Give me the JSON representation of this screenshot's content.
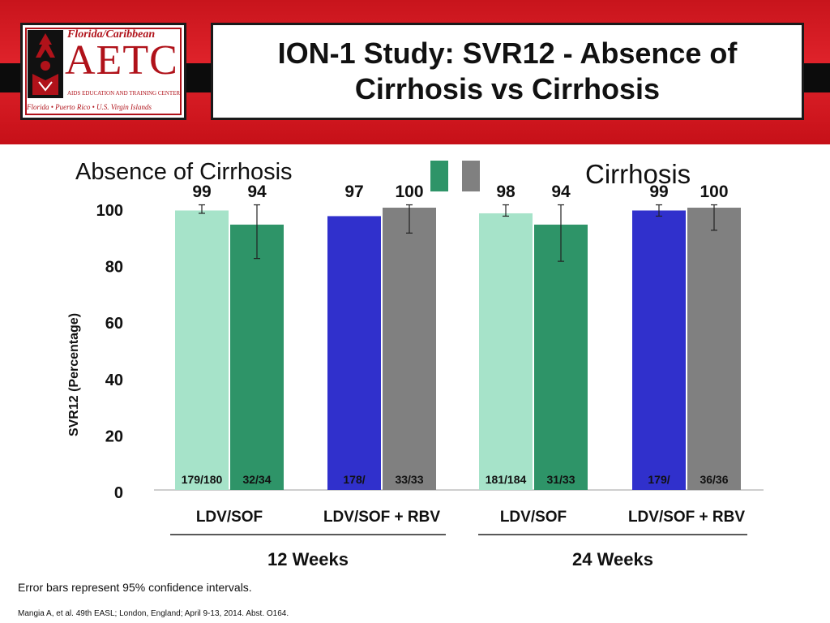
{
  "logo": {
    "top_text": "Florida/Caribbean",
    "main_text": "AETC",
    "sub_text": "AIDS EDUCATION AND TRAINING CENTER",
    "foot_text": "Florida • Puerto Rico • U.S. Virgin Islands"
  },
  "slide": {
    "title": "ION-1 Study: SVR12 - Absence of Cirrhosis vs Cirrhosis",
    "note": "Error bars represent 95% confidence intervals.",
    "citation": "Mangia A, et al. 49th EASL; London, England; April 9-13, 2014. Abst. O164."
  },
  "colors": {
    "banner_red": "#d11a22",
    "absence_ldv_sof": "#a6e3c9",
    "cirrhosis_ldv_sof": "#2e9468",
    "absence_ldv_sof_rbv": "#3030cc",
    "cirrhosis_ldv_sof_rbv": "#808080"
  },
  "chart_data": {
    "type": "bar",
    "ylabel": "SVR12 (Percentage)",
    "ylim": [
      0,
      100
    ],
    "yticks": [
      "0",
      "20",
      "40",
      "60",
      "80",
      "100"
    ],
    "grid": false,
    "legend": {
      "placement": "top",
      "entries": [
        "Absence of Cirrhosis",
        "Cirrhosis"
      ],
      "swatch_colors": [
        "#2e9468",
        "#808080"
      ]
    },
    "groups": [
      {
        "label": "12 Weeks",
        "regimens": [
          0,
          1
        ]
      },
      {
        "label": "24 Weeks",
        "regimens": [
          2,
          3
        ]
      }
    ],
    "regimens": [
      {
        "label": "LDV/SOF",
        "bars": [
          {
            "value": 99,
            "label": "99",
            "n": "179/180",
            "ci": [
              98,
              101
            ],
            "color": "#a6e3c9"
          },
          {
            "value": 94,
            "label": "94",
            "n": "32/34",
            "ci": [
              82,
              101
            ],
            "color": "#2e9468"
          }
        ]
      },
      {
        "label": "LDV/SOF + RBV",
        "bars": [
          {
            "value": 97,
            "label": "97",
            "n": "178/",
            "ci": null,
            "color": "#3030cc"
          },
          {
            "value": 100,
            "label": "100",
            "n": "33/33",
            "ci": [
              91,
              101
            ],
            "color": "#808080"
          }
        ]
      },
      {
        "label": "LDV/SOF",
        "bars": [
          {
            "value": 98,
            "label": "98",
            "n": "181/184",
            "ci": [
              97,
              101
            ],
            "color": "#a6e3c9"
          },
          {
            "value": 94,
            "label": "94",
            "n": "31/33",
            "ci": [
              81,
              101
            ],
            "color": "#2e9468"
          }
        ]
      },
      {
        "label": "LDV/SOF + RBV",
        "bars": [
          {
            "value": 99,
            "label": "99",
            "n": "179/",
            "ci": [
              97,
              101
            ],
            "color": "#3030cc"
          },
          {
            "value": 100,
            "label": "100",
            "n": "36/36",
            "ci": [
              92,
              101
            ],
            "color": "#808080"
          }
        ]
      }
    ]
  }
}
